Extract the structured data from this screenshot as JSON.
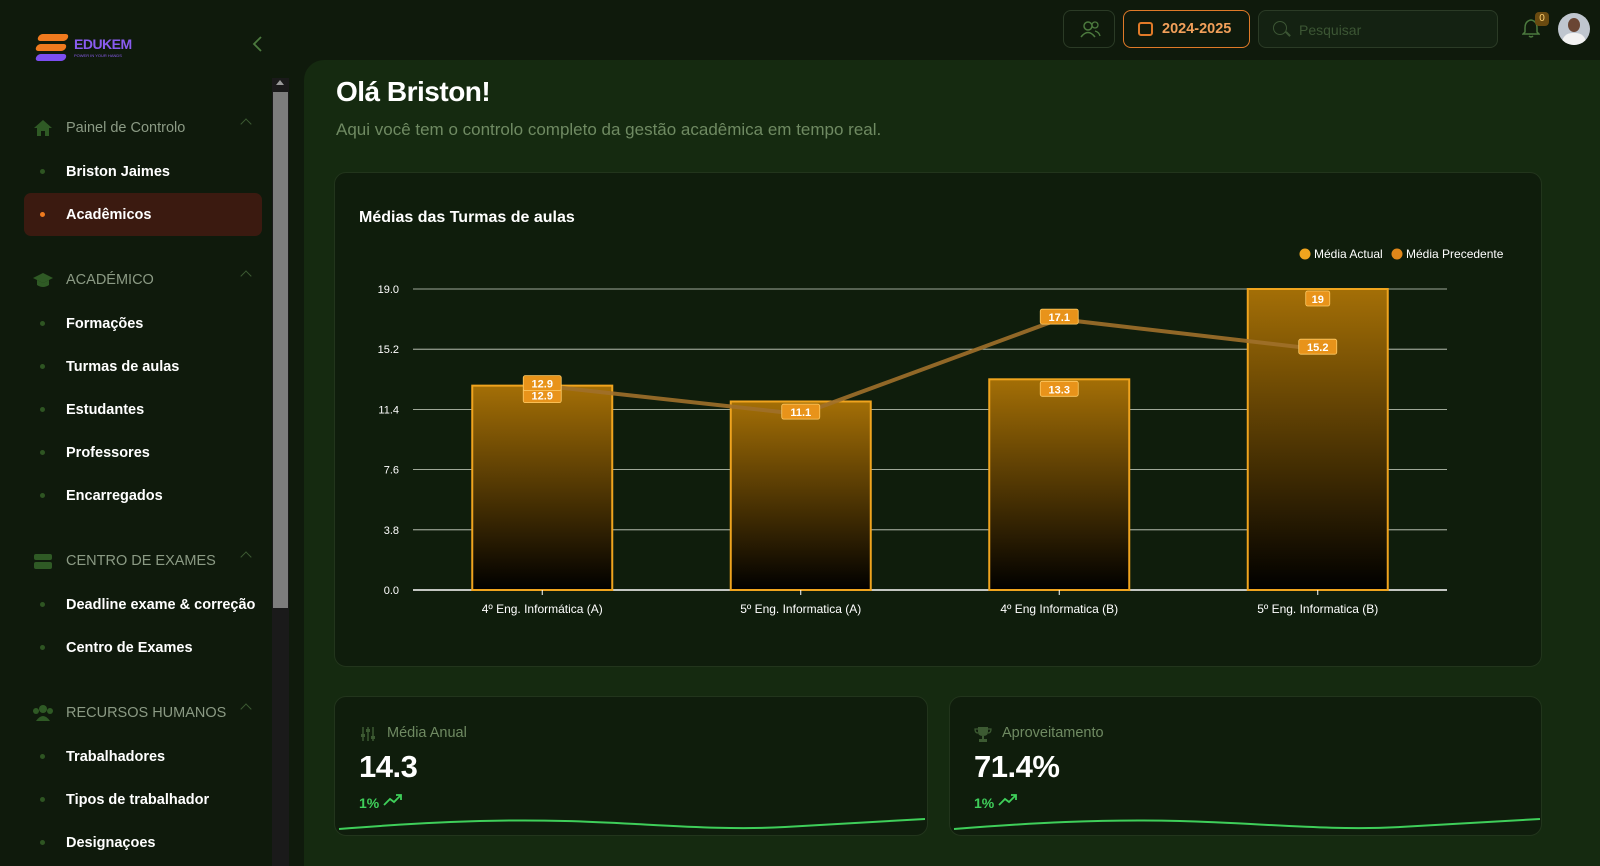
{
  "brand": {
    "name": "EDUKEM",
    "tagline": "POWER IN YOUR HANDS"
  },
  "topbar": {
    "year_label": "2024-2025",
    "search_placeholder": "Pesquisar",
    "notifications_count": "0"
  },
  "sidebar": {
    "sections": [
      {
        "title": "Painel de Controlo",
        "icon": "home-icon",
        "items": [
          "Briston Jaimes",
          "Acadêmicos"
        ],
        "active": 1
      },
      {
        "title": "ACADÉMICO",
        "icon": "graduation-cap-icon",
        "items": [
          "Formações",
          "Turmas de aulas",
          "Estudantes",
          "Professores",
          "Encarregados"
        ]
      },
      {
        "title": "CENTRO DE EXAMES",
        "icon": "exam-tray-icon",
        "items": [
          "Deadline exame & correção",
          "Centro de Exames"
        ]
      },
      {
        "title": "RECURSOS HUMANOS",
        "icon": "people-icon",
        "items": [
          "Trabalhadores",
          "Tipos de trabalhador",
          "Designaçoes"
        ]
      }
    ]
  },
  "main": {
    "greeting": "Olá Briston!",
    "subtitle": "Aqui você tem o controlo completo da gestão acadêmica em tempo real."
  },
  "chart_data": {
    "type": "bar",
    "title": "Médias das Turmas de aulas",
    "categories": [
      "4º Eng. Informática (A)",
      "5º Eng. Informatica (A)",
      "4º Eng Informatica (B)",
      "5º Eng. Informatica (B)"
    ],
    "series": [
      {
        "name": "Média Actual",
        "type": "bar",
        "values": [
          12.9,
          11.9,
          13.3,
          19
        ]
      },
      {
        "name": "Média Precedente",
        "type": "line",
        "values": [
          12.9,
          11.1,
          17.1,
          15.2
        ]
      }
    ],
    "bar_labels": [
      "12.9",
      "",
      "13.3",
      "19"
    ],
    "line_labels": [
      "12.9",
      "11.1",
      "17.1",
      "15.2"
    ],
    "yticks": [
      "0.0",
      "3.8",
      "7.6",
      "11.4",
      "15.2",
      "19.0"
    ],
    "ylim": [
      0,
      19
    ],
    "legend_position": "top-right",
    "colors": {
      "bar": "#f0a41e",
      "line": "#a0702a",
      "label_bg": "#e8931a"
    }
  },
  "stats": [
    {
      "label": "Média Anual",
      "value": "14.3",
      "delta": "1%",
      "icon": "sliders-icon"
    },
    {
      "label": "Aproveitamento",
      "value": "71.4%",
      "delta": "1%",
      "icon": "trophy-icon"
    }
  ]
}
